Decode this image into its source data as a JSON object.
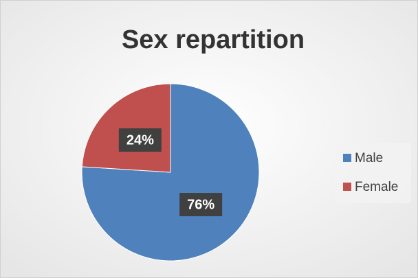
{
  "chart_data": {
    "type": "pie",
    "title": "Sex repartition",
    "categories": [
      "Male",
      "Female"
    ],
    "values": [
      76,
      24
    ],
    "value_labels": [
      "76%",
      "24%"
    ],
    "colors": [
      "#4f81bd",
      "#c0504d"
    ],
    "legend": "right"
  }
}
